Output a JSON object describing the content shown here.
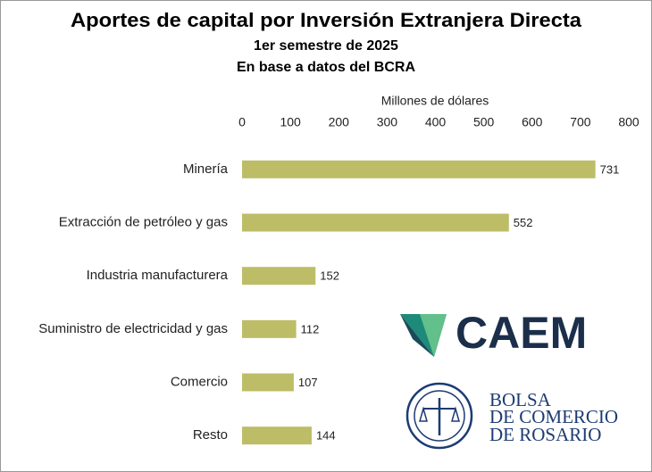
{
  "chart_data": {
    "type": "bar",
    "orientation": "horizontal",
    "title": "Aportes de capital por Inversión Extranjera Directa",
    "subtitle": [
      "1er semestre de 2025",
      "En base a datos del BCRA"
    ],
    "x_label": "Millones de dólares",
    "categories": [
      "Minería",
      "Extracción de petróleo y gas",
      "Industria manufacturera",
      "Suministro de electricidad y gas",
      "Comercio",
      "Resto"
    ],
    "values": [
      731,
      552,
      152,
      112,
      107,
      144
    ],
    "color": "#bdbd67",
    "xlim": [
      0,
      800
    ],
    "xticks": [
      0,
      100,
      200,
      300,
      400,
      500,
      600,
      700,
      800
    ],
    "annotations": [
      "CAEM",
      "BOLSA",
      "DE COMERCIO",
      "DE ROSARIO"
    ]
  }
}
